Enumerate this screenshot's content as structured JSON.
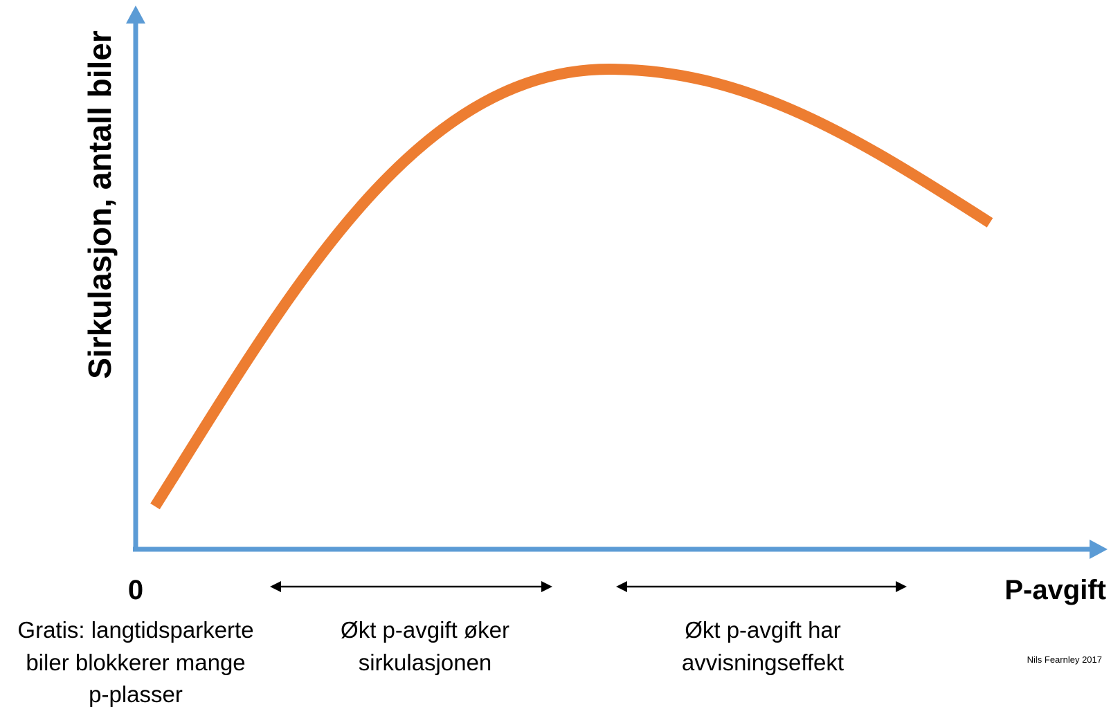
{
  "diagram": {
    "y_axis_label": "Sirkulasjon, antall biler",
    "x_axis_label": "P-avgift",
    "origin_label": "0",
    "regions": [
      {
        "lines": [
          "Gratis: langtidsparkerte",
          "biler blokkerer mange",
          "p-plasser"
        ]
      },
      {
        "lines": [
          "Økt p-avgift øker",
          "sirkulasjonen"
        ]
      },
      {
        "lines": [
          "Økt p-avgift har",
          "avvisningseffekt"
        ]
      }
    ],
    "credit": "Nils Fearnley 2017",
    "colors": {
      "axis": "#5b9bd5",
      "curve": "#ed7d31",
      "arrow": "#000000"
    }
  }
}
